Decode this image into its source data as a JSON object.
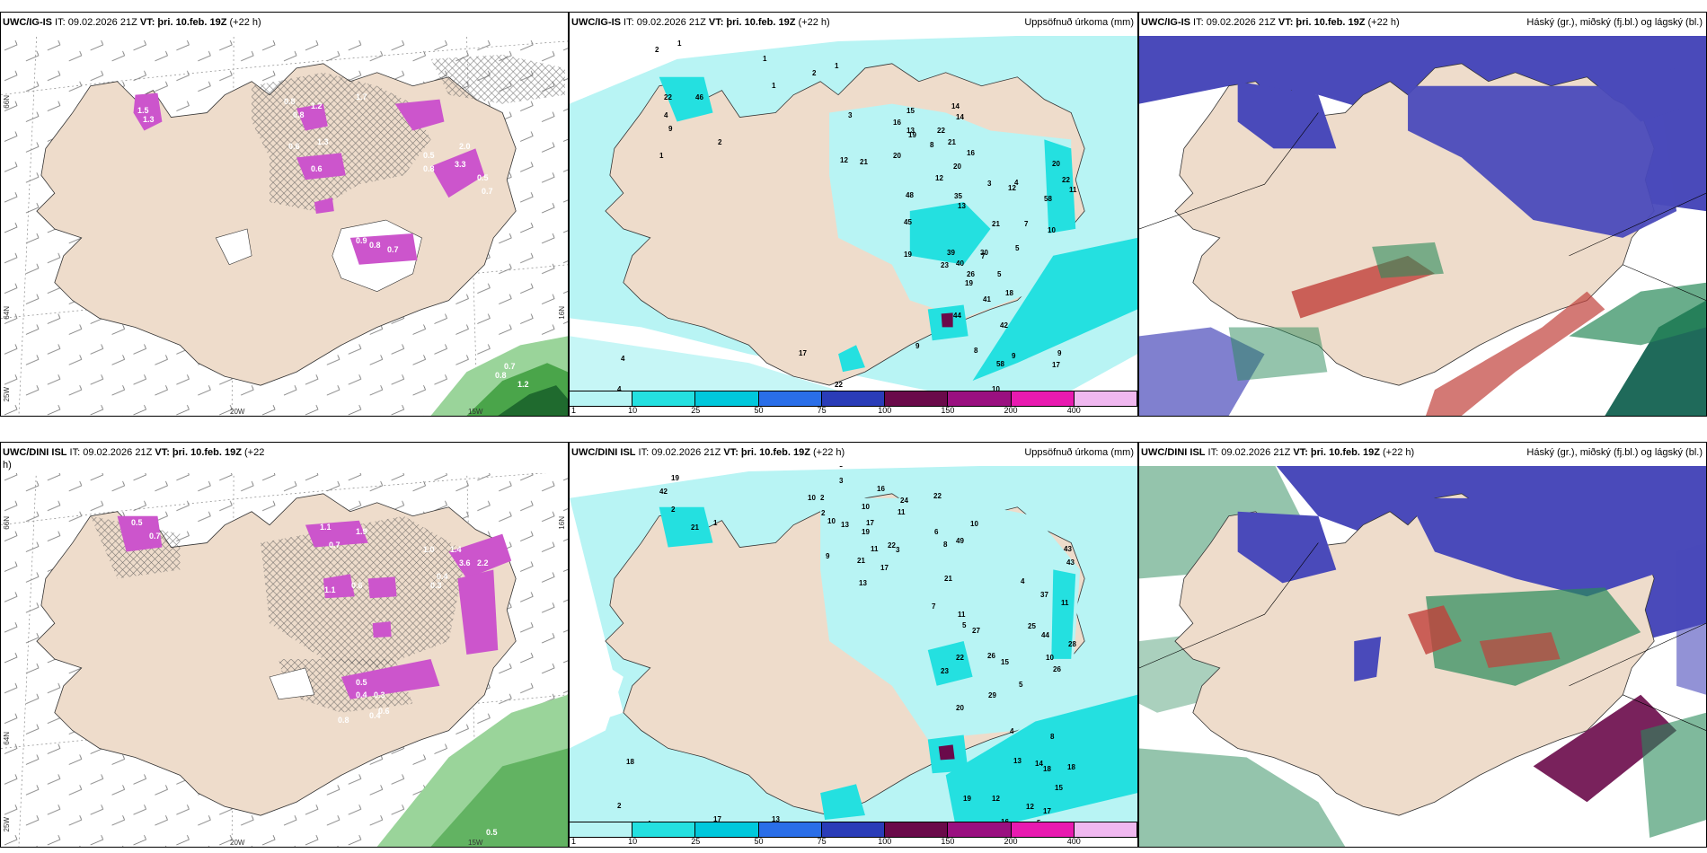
{
  "panels": [
    {
      "id": "p1",
      "type": "wind_precip",
      "header": {
        "model": "UWC/IG-IS",
        "it": " IT: 09.02.2026 21Z ",
        "vt": "VT: þri. 10.feb. 19Z",
        "lead": " (+22 h)",
        "right": ""
      },
      "axis": {
        "lon": [
          "20W",
          "15W"
        ],
        "lat": [
          "66N",
          "64N",
          "25W",
          "16N"
        ]
      },
      "labels": [
        "1.5",
        "1.3",
        "0.8",
        "0.8",
        "1.2",
        "1.7",
        "0.6",
        "1.3",
        "0.6",
        "2.0",
        "0.5",
        "3.3",
        "0.8",
        "0.5",
        "0.7",
        "0.9",
        "0.8",
        "0.7",
        "0.8",
        "0.7",
        "1.2"
      ]
    },
    {
      "id": "p2",
      "type": "accum",
      "header": {
        "model": "UWC/IG-IS",
        "it": " IT: 09.02.2026 21Z ",
        "vt": "VT: þri. 10.feb. 19Z",
        "lead": " (+22 h)",
        "right": "Uppsöfnuð úrkoma (mm)"
      },
      "colorbar": {
        "labels": [
          "1",
          "10",
          "25",
          "50",
          "75",
          "100",
          "150",
          "200",
          "400"
        ]
      },
      "values": [
        "2",
        "1",
        "1",
        "1",
        "2",
        "1",
        "22",
        "46",
        "4",
        "9",
        "2",
        "1",
        "3",
        "15",
        "14",
        "14",
        "13",
        "16",
        "19",
        "22",
        "21",
        "8",
        "12",
        "21",
        "20",
        "16",
        "20",
        "3",
        "12",
        "12",
        "20",
        "22",
        "4",
        "48",
        "35",
        "13",
        "58",
        "11",
        "21",
        "7",
        "45",
        "10",
        "5",
        "19",
        "39",
        "7",
        "23",
        "40",
        "30",
        "26",
        "5",
        "19",
        "18",
        "44",
        "41",
        "42",
        "8",
        "9",
        "9",
        "58",
        "9",
        "17",
        "10",
        "17",
        "4",
        "4",
        "1",
        "9",
        "22"
      ]
    },
    {
      "id": "p3",
      "type": "cloud",
      "header": {
        "model": "UWC/IG-IS",
        "it": " IT: 09.02.2026 21Z ",
        "vt": "VT: þri. 10.feb. 19Z",
        "lead": " (+22 h)",
        "right": "Háský (gr.), miðský (fj.bl.) og lágský (bl.)"
      }
    },
    {
      "id": "p4",
      "type": "wind_precip",
      "header": {
        "model": "UWC/DINI ISL",
        "it": " IT: 09.02.2026 21Z ",
        "vt": "VT: þri. 10.feb. 19Z",
        "lead": " (+22",
        "right": "",
        "wrap": "h)"
      },
      "axis": {
        "lon": [
          "20W",
          "15W"
        ],
        "lat": [
          "66N",
          "64N",
          "25W",
          "16N"
        ]
      },
      "labels": [
        "0.5",
        "0.7",
        "1.1",
        "0.7",
        "1.9",
        "1.0",
        "1.4",
        "3.6",
        "0.4",
        "0.3",
        "2.2",
        "0.6",
        "1.1",
        "0.5",
        "0.4",
        "0.3",
        "0.6",
        "0.8",
        "0.4",
        "0.5"
      ]
    },
    {
      "id": "p5",
      "type": "accum",
      "header": {
        "model": "UWC/DINI ISL",
        "it": " IT: 09.02.2026 21Z ",
        "vt": "VT: þri. 10.feb. 19Z",
        "lead": " (+22 h)",
        "right": "Uppsöfnuð úrkoma (mm)"
      },
      "colorbar": {
        "labels": [
          "1",
          "10",
          "25",
          "50",
          "75",
          "100",
          "150",
          "200",
          "400"
        ]
      },
      "values": [
        "2",
        "1",
        "1",
        "1",
        "2",
        "3",
        "19",
        "42",
        "2",
        "1",
        "21",
        "3",
        "10",
        "2",
        "2",
        "10",
        "16",
        "24",
        "22",
        "11",
        "13",
        "10",
        "17",
        "19",
        "6",
        "8",
        "11",
        "22",
        "3",
        "49",
        "10",
        "9",
        "21",
        "17",
        "13",
        "43",
        "43",
        "4",
        "37",
        "11",
        "21",
        "7",
        "11",
        "5",
        "25",
        "27",
        "44",
        "28",
        "26",
        "22",
        "15",
        "10",
        "23",
        "26",
        "5",
        "29",
        "20",
        "4",
        "8",
        "13",
        "14",
        "18",
        "18",
        "15",
        "19",
        "12",
        "12",
        "17",
        "16",
        "20",
        "18",
        "2",
        "4",
        "7",
        "6",
        "7",
        "17",
        "13",
        "5"
      ]
    },
    {
      "id": "p6",
      "type": "cloud",
      "header": {
        "model": "UWC/DINI ISL",
        "it": " IT: 09.02.2026 21Z ",
        "vt": "VT: þri. 10.feb. 19Z",
        "lead": " (+22 h)",
        "right": "Háský (gr.), miðský (fj.bl.) og lágský (bl.)"
      }
    }
  ],
  "colors": {
    "land": "#eedccb",
    "sea": "#ffffff",
    "cyan_light": "#b8f4f4",
    "cyan": "#24e0e0",
    "cyan_mid": "#00c8dc",
    "blue": "#2a6ee8",
    "navy": "#2a3cb8",
    "maroon": "#6a0a4a",
    "purple": "#9a1080",
    "magenta": "#e81ab0",
    "pink": "#f0b8f0",
    "high_cloud": "#2a8a5a",
    "mid_cloud": "#c0403a",
    "low_cloud": "#4a4aba"
  }
}
